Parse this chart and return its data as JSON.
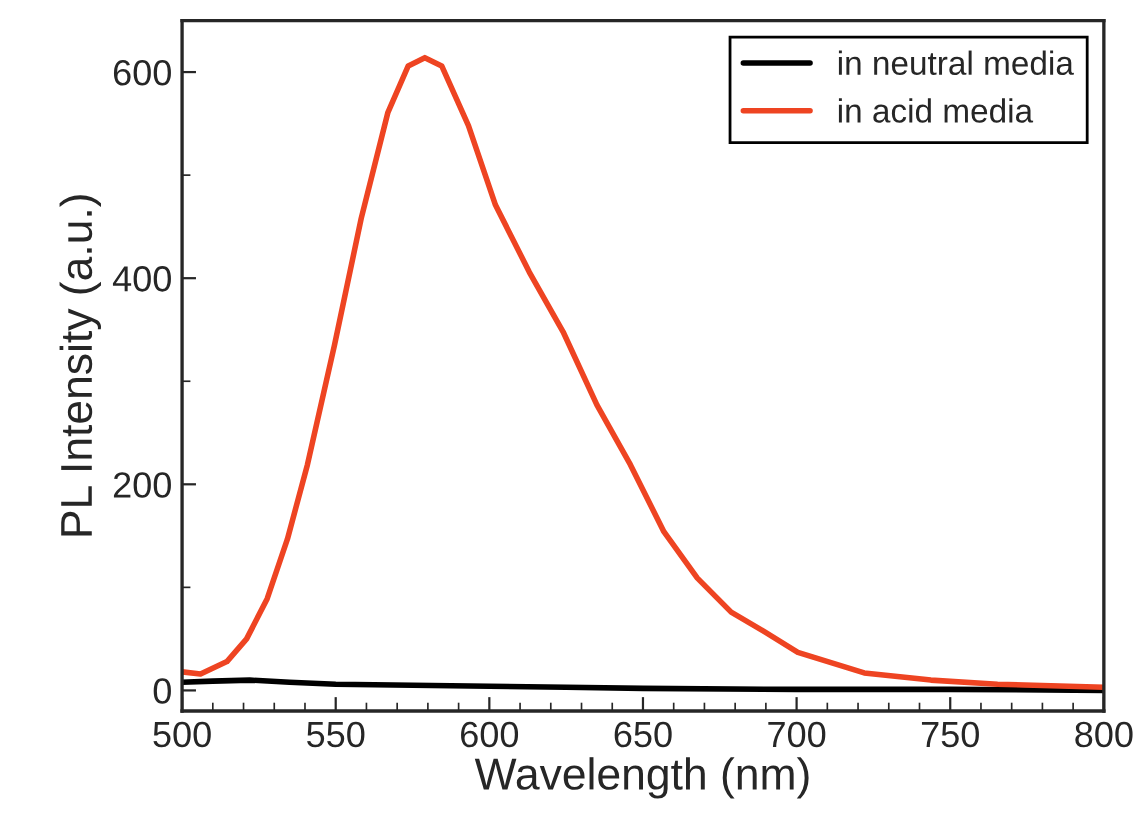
{
  "chart_data": {
    "type": "line",
    "xlabel": "Wavelength (nm)",
    "ylabel": "PL Intensity (a.u.)",
    "xlim": [
      500,
      800
    ],
    "ylim": [
      -20,
      650
    ],
    "xticks": [
      500,
      550,
      600,
      650,
      700,
      750,
      800
    ],
    "yticks": [
      0,
      200,
      400,
      600
    ],
    "grid": false,
    "legend": "top right",
    "marker": "none",
    "line_style": "solid",
    "series": [
      {
        "name": "in neutral media",
        "color": "#000000",
        "x": [
          500,
          510,
          522,
          535,
          550,
          575,
          600,
          625,
          650,
          700,
          750,
          800
        ],
        "values": [
          8,
          9,
          10,
          8,
          6,
          5,
          4,
          3,
          2,
          1,
          1,
          0
        ]
      },
      {
        "name": "in acid media",
        "color": "#ee4422",
        "x": [
          500,
          506,
          514.6,
          521,
          527.7,
          534.3,
          540.8,
          549.6,
          558.3,
          567,
          573.6,
          579,
          584.5,
          593.2,
          602,
          613,
          624,
          635,
          645.9,
          656.8,
          667.7,
          678.7,
          689.5,
          700.4,
          722,
          743.7,
          765.4,
          800
        ],
        "values": [
          18,
          16,
          28,
          50,
          89,
          147,
          219,
          335,
          458,
          561,
          606,
          614,
          606,
          548,
          471,
          406,
          348,
          277,
          219,
          154,
          109,
          76,
          57,
          37,
          17,
          10,
          6,
          3
        ]
      }
    ]
  }
}
